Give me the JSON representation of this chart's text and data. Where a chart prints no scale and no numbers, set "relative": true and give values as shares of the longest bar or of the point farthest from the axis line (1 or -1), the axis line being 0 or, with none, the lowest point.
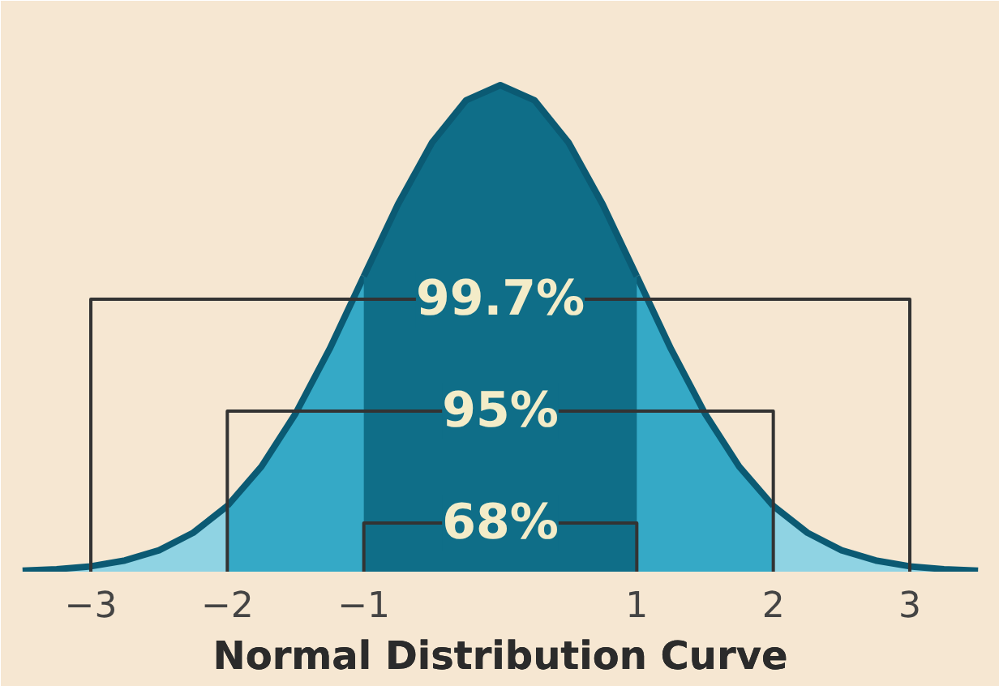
{
  "chart_data": {
    "type": "area",
    "title": "Normal Distribution Curve",
    "relative": true,
    "x": [
      -3.5,
      -3.25,
      -3.0,
      -2.75,
      -2.5,
      -2.25,
      -2.0,
      -1.75,
      -1.5,
      -1.25,
      -1.0,
      -0.75,
      -0.5,
      -0.25,
      0,
      0.25,
      0.5,
      0.75,
      1.0,
      1.25,
      1.5,
      1.75,
      2.0,
      2.25,
      2.5,
      2.75,
      3.0,
      3.25,
      3.5
    ],
    "series": [
      {
        "color": "#8fd3e3",
        "values": [
          0.002,
          0.005,
          0.011,
          0.023,
          0.044,
          0.08,
          0.135,
          null,
          null,
          null,
          null,
          null,
          null,
          null,
          null,
          null,
          null,
          null,
          null,
          null,
          null,
          null,
          0.135,
          0.08,
          0.044,
          0.023,
          0.011,
          0.005,
          0.002
        ]
      },
      {
        "color": "#35a9c6",
        "x": [
          -2.0,
          -1.75,
          -1.5,
          -1.25,
          -1.0,
          -0.75,
          -0.5,
          -0.25,
          0,
          0.25,
          0.5,
          0.75,
          1.0,
          1.25,
          1.5,
          1.75,
          2.0
        ],
        "values": [
          0.135,
          0.216,
          0.325,
          0.458,
          0.607,
          null,
          null,
          null,
          null,
          null,
          null,
          null,
          0.607,
          0.458,
          0.325,
          0.216,
          0.135
        ]
      },
      {
        "color": "#0f6e88",
        "x": [
          -1.0,
          -0.75,
          -0.5,
          -0.25,
          0,
          0.25,
          0.5,
          0.75,
          1.0
        ],
        "values": [
          0.607,
          0.755,
          0.882,
          0.969,
          1,
          0.969,
          0.882,
          0.755,
          0.607
        ]
      },
      {
        "type": "line",
        "color": "#333333",
        "x": [
          -3,
          -3,
          3,
          3
        ],
        "values": [
          0,
          0.56,
          0.56,
          0
        ]
      },
      {
        "type": "line",
        "color": "#333333",
        "x": [
          -2,
          -2,
          2,
          2
        ],
        "values": [
          0,
          0.33,
          0.33,
          0
        ]
      },
      {
        "type": "line",
        "color": "#333333",
        "x": [
          -1,
          -1,
          1,
          1
        ],
        "values": [
          0,
          0.1,
          0.1,
          0
        ]
      }
    ],
    "annotations": [
      "99.7%",
      "95%",
      "68%"
    ],
    "xlim": [
      -3.6,
      3.6
    ],
    "xticks": [
      -3,
      -2,
      -1,
      1,
      2,
      3
    ],
    "grid": false
  }
}
